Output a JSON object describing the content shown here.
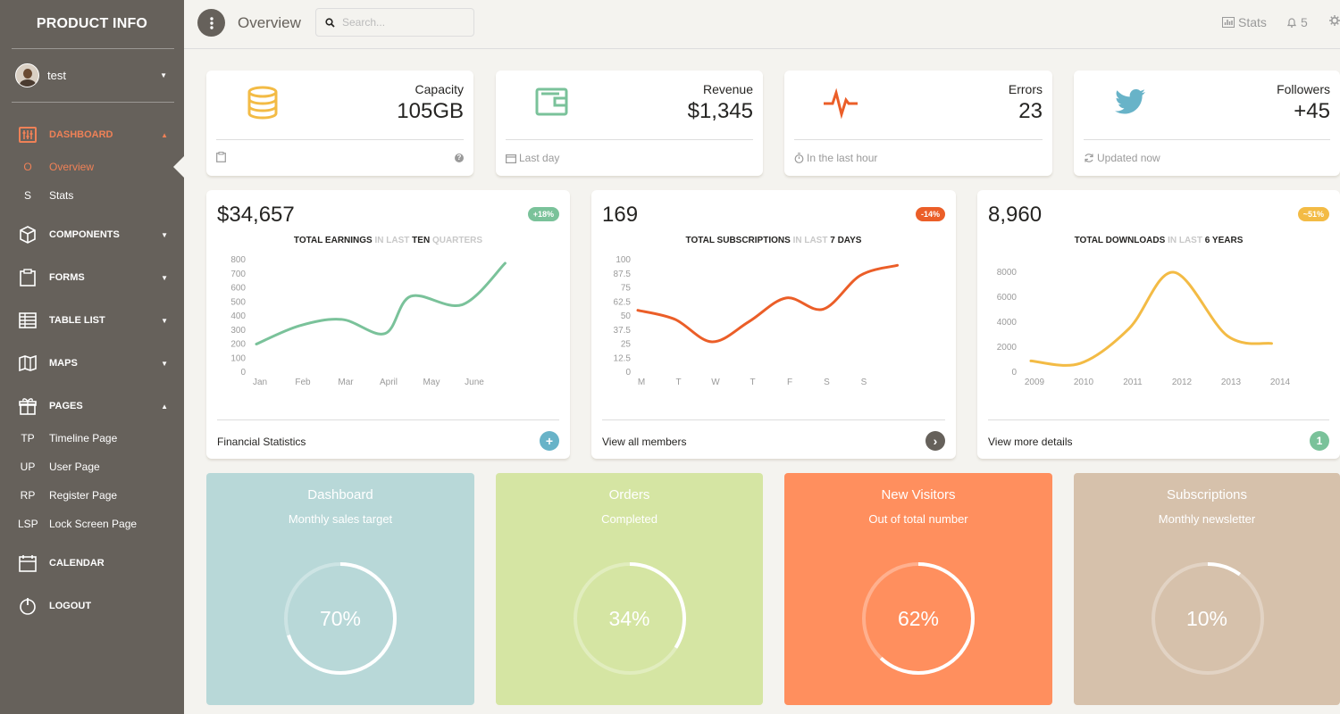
{
  "sidebar": {
    "brand": "PRODUCT INFO",
    "user": "test",
    "nav": [
      {
        "label": "DASHBOARD",
        "icon": "dashboard-icon",
        "active": true,
        "expanded": true
      },
      {
        "label": "COMPONENTS",
        "icon": "box-icon"
      },
      {
        "label": "FORMS",
        "icon": "clipboard-icon"
      },
      {
        "label": "TABLE LIST",
        "icon": "table-icon"
      },
      {
        "label": "MAPS",
        "icon": "map-icon"
      },
      {
        "label": "PAGES",
        "icon": "gift-icon",
        "expanded": true
      },
      {
        "label": "CALENDAR",
        "icon": "calendar-icon"
      },
      {
        "label": "LOGOUT",
        "icon": "power-icon"
      }
    ],
    "dashboard_sub": [
      {
        "abbr": "O",
        "label": "Overview",
        "active": true
      },
      {
        "abbr": "S",
        "label": "Stats"
      }
    ],
    "pages_sub": [
      {
        "abbr": "TP",
        "label": "Timeline Page"
      },
      {
        "abbr": "UP",
        "label": "User Page"
      },
      {
        "abbr": "RP",
        "label": "Register Page"
      },
      {
        "abbr": "LSP",
        "label": "Lock Screen Page"
      }
    ]
  },
  "topbar": {
    "title": "Overview",
    "search_placeholder": "Search...",
    "stats_label": "Stats",
    "notifications": "5"
  },
  "stats": [
    {
      "title": "Capacity",
      "value": "105GB",
      "footer": "",
      "icon": "database-icon",
      "color": "#f3bb45"
    },
    {
      "title": "Revenue",
      "value": "$1,345",
      "footer": "Last day",
      "icon": "wallet-icon",
      "color": "#7ac29a"
    },
    {
      "title": "Errors",
      "value": "23",
      "footer": "In the last hour",
      "icon": "pulse-icon",
      "color": "#eb5e28"
    },
    {
      "title": "Followers",
      "value": "+45",
      "footer": "Updated now",
      "icon": "twitter-icon",
      "color": "#68b3c8"
    }
  ],
  "charts": [
    {
      "value": "$34,657",
      "badge": "+18%",
      "badge_color": "#7ac29a",
      "title_parts": [
        "TOTAL EARNINGS",
        "IN LAST",
        "TEN",
        "QUARTERS"
      ],
      "footer": "Financial Statistics"
    },
    {
      "value": "169",
      "badge": "-14%",
      "badge_color": "#eb5e28",
      "title_parts": [
        "TOTAL SUBSCRIPTIONS",
        "IN LAST",
        "7 DAYS"
      ],
      "footer": "View all members"
    },
    {
      "value": "8,960",
      "badge": "~51%",
      "badge_color": "#f3bb45",
      "title_parts": [
        "TOTAL DOWNLOADS",
        "IN LAST",
        "6 YEARS"
      ],
      "footer": "View more details",
      "footer_btn": "1"
    }
  ],
  "chart_data": [
    {
      "type": "line",
      "x": [
        "Jan",
        "Feb",
        "Mar",
        "April",
        "May",
        "June"
      ],
      "y_ticks": [
        0,
        100,
        200,
        300,
        400,
        500,
        600,
        700,
        800
      ],
      "ylim": [
        0,
        800
      ],
      "color": "#7ac29a",
      "series": [
        {
          "values": [
            200,
            330,
            375,
            275,
            540,
            480,
            775
          ],
          "x": [
            0,
            1,
            2,
            3,
            3.6,
            4.8,
            5.8
          ]
        }
      ]
    },
    {
      "type": "line",
      "x": [
        "M",
        "T",
        "W",
        "T",
        "F",
        "S",
        "S"
      ],
      "y_ticks": [
        0,
        12.5,
        25,
        37.5,
        50,
        62.5,
        75,
        87.5,
        100
      ],
      "ylim": [
        0,
        100
      ],
      "color": "#eb5e28",
      "series": [
        {
          "values": [
            55,
            47,
            27,
            45,
            66,
            56,
            86,
            95
          ],
          "x": [
            0,
            1,
            2,
            3,
            4,
            5,
            6,
            7
          ]
        }
      ]
    },
    {
      "type": "line",
      "x": [
        "2009",
        "2010",
        "2011",
        "2012",
        "2013",
        "2014"
      ],
      "y_ticks": [
        0,
        2000,
        4000,
        6000,
        8000
      ],
      "ylim": [
        0,
        9000
      ],
      "color": "#f3bb45",
      "series": [
        {
          "values": [
            900,
            700,
            3500,
            8000,
            2900,
            2300
          ],
          "x": [
            0,
            1,
            2,
            2.9,
            4,
            4.9
          ]
        }
      ]
    }
  ],
  "big_cards": [
    {
      "title": "Dashboard",
      "subtitle": "Monthly sales target",
      "percent": 70,
      "label": "70%",
      "bg": "#b8d8d8"
    },
    {
      "title": "Orders",
      "subtitle": "Completed",
      "percent": 34,
      "label": "34%",
      "bg": "#d5e5a3"
    },
    {
      "title": "New Visitors",
      "subtitle": "Out of total number",
      "percent": 62,
      "label": "62%",
      "bg": "#ff8f5e"
    },
    {
      "title": "Subscriptions",
      "subtitle": "Monthly newsletter",
      "percent": 10,
      "label": "10%",
      "bg": "#d6c1ab"
    }
  ]
}
